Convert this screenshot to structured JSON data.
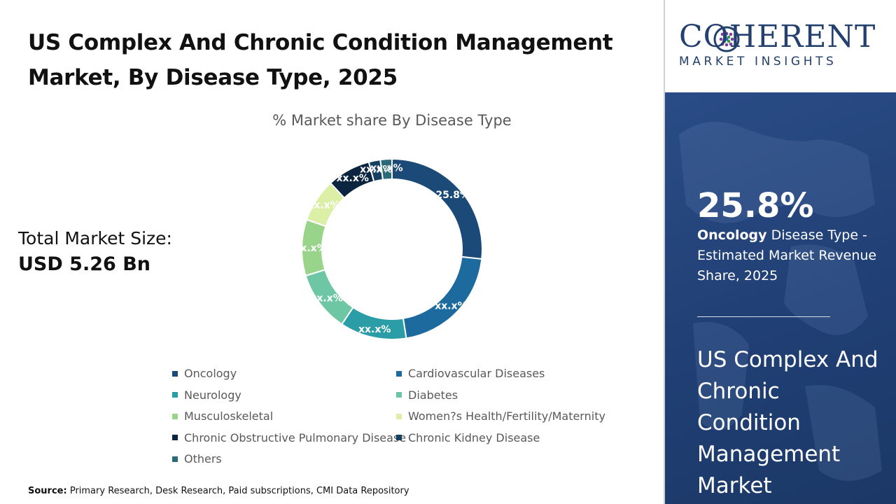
{
  "title": "US Complex And Chronic Condition Management Market, By Disease Type, 2025",
  "total_market": {
    "label": "Total Market Size:",
    "value": "USD 5.26 Bn"
  },
  "source": {
    "label": "Source:",
    "text": "Primary Research, Desk Research, Paid subscriptions, CMI Data Repository"
  },
  "logo": {
    "name": "COHERENT",
    "tagline": "MARKET INSIGHTS"
  },
  "highlight": {
    "value": "25.8%",
    "segment": "Oncology",
    "description": "Disease Type - Estimated Market Revenue Share, 2025",
    "market_name": "US Complex And Chronic Condition Management Market"
  },
  "chart_data": {
    "type": "pie",
    "subtype": "donut",
    "title": "% Market share By Disease Type",
    "categories": [
      "Oncology",
      "Cardiovascular Diseases",
      "Neurology",
      "Diabetes",
      "Musculoskeletal",
      "Women?s Health/Fertility/Maternity",
      "Chronic Obstructive Pulmonary Disease",
      "Chronic Kidney Disease",
      "Others"
    ],
    "values": [
      25.8,
      20.0,
      11.5,
      10.5,
      9.7,
      7.5,
      7.5,
      2.0,
      2.0
    ],
    "labels": [
      "25.8%",
      "xx.x%",
      "xx.x%",
      "xx.x%",
      "xx.x%",
      "xx.x%",
      "xx.x%",
      "xx.x%",
      "xx.x%"
    ],
    "colors": [
      "#1b4a78",
      "#1c6a9e",
      "#2a9da6",
      "#6dc7a4",
      "#98d48a",
      "#dcefa6",
      "#0b2440",
      "#154060",
      "#2a6b78"
    ],
    "legend_position": "bottom"
  }
}
